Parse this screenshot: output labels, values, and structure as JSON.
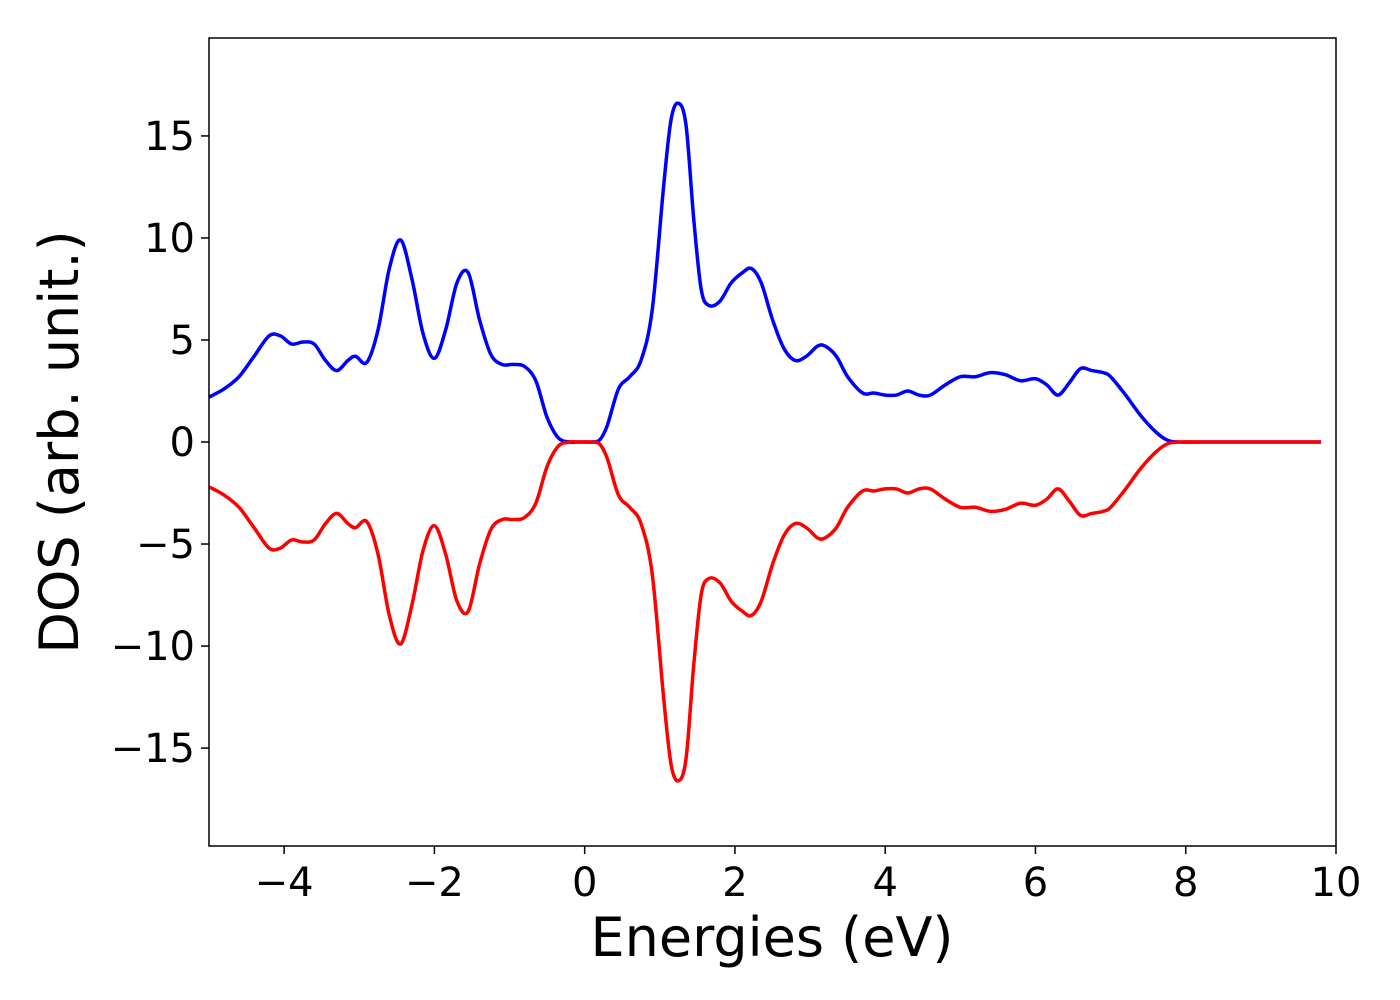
{
  "chart_data": {
    "type": "line",
    "title": "",
    "xlabel": "Energies (eV)",
    "ylabel": "DOS (arb. unit.)",
    "xlim": [
      -5,
      10
    ],
    "ylim": [
      -19.8,
      19.8
    ],
    "grid": false,
    "legend": "none",
    "x_ticks": [
      -4,
      -2,
      0,
      2,
      4,
      6,
      8,
      10
    ],
    "x_tick_labels": [
      "−4",
      "−2",
      "0",
      "2",
      "4",
      "6",
      "8",
      "10"
    ],
    "y_ticks": [
      15,
      10,
      5,
      0,
      -5,
      -10,
      -15
    ],
    "y_tick_labels": [
      "15",
      "10",
      "5",
      "0",
      "−5",
      "−10",
      "−15"
    ],
    "series": [
      {
        "color": "#0000ff",
        "x": [
          -5.0,
          -4.8,
          -4.6,
          -4.4,
          -4.2,
          -4.05,
          -3.9,
          -3.75,
          -3.6,
          -3.45,
          -3.3,
          -3.15,
          -3.05,
          -2.9,
          -2.75,
          -2.6,
          -2.45,
          -2.3,
          -2.15,
          -2.0,
          -1.85,
          -1.7,
          -1.55,
          -1.4,
          -1.25,
          -1.1,
          -0.95,
          -0.8,
          -0.65,
          -0.5,
          -0.35,
          -0.2,
          -0.1,
          0.0,
          0.1,
          0.2,
          0.3,
          0.45,
          0.6,
          0.75,
          0.9,
          1.05,
          1.15,
          1.25,
          1.35,
          1.45,
          1.55,
          1.65,
          1.8,
          1.95,
          2.1,
          2.22,
          2.35,
          2.5,
          2.65,
          2.8,
          2.95,
          3.1,
          3.2,
          3.35,
          3.5,
          3.7,
          3.85,
          4.0,
          4.15,
          4.3,
          4.45,
          4.6,
          4.8,
          5.0,
          5.2,
          5.4,
          5.6,
          5.8,
          6.0,
          6.15,
          6.3,
          6.45,
          6.6,
          6.75,
          6.9,
          7.0,
          7.2,
          7.4,
          7.6,
          7.75,
          7.9,
          8.2,
          8.6,
          9.0,
          9.4,
          9.8
        ],
        "values": [
          2.2,
          2.6,
          3.2,
          4.2,
          5.2,
          5.2,
          4.8,
          4.9,
          4.8,
          4.0,
          3.5,
          4.0,
          4.2,
          3.9,
          5.5,
          8.5,
          9.9,
          8.0,
          5.3,
          4.1,
          5.5,
          7.8,
          8.3,
          6.0,
          4.3,
          3.8,
          3.8,
          3.7,
          3.0,
          1.2,
          0.2,
          0.0,
          0.0,
          0.0,
          0.0,
          0.1,
          0.8,
          2.6,
          3.2,
          4.0,
          6.5,
          12.5,
          15.8,
          16.6,
          15.5,
          11.0,
          7.5,
          6.7,
          6.9,
          7.8,
          8.3,
          8.5,
          7.8,
          6.0,
          4.6,
          4.0,
          4.2,
          4.7,
          4.7,
          4.2,
          3.2,
          2.4,
          2.4,
          2.3,
          2.3,
          2.5,
          2.3,
          2.3,
          2.8,
          3.2,
          3.2,
          3.4,
          3.3,
          3.0,
          3.1,
          2.8,
          2.3,
          2.9,
          3.6,
          3.5,
          3.4,
          3.2,
          2.3,
          1.3,
          0.5,
          0.1,
          0.0,
          0.0,
          0.0,
          0.0,
          0.0,
          0.0
        ]
      },
      {
        "color": "#ff0000",
        "x": [
          -5.0,
          -4.8,
          -4.6,
          -4.4,
          -4.2,
          -4.05,
          -3.9,
          -3.75,
          -3.6,
          -3.45,
          -3.3,
          -3.15,
          -3.05,
          -2.9,
          -2.75,
          -2.6,
          -2.45,
          -2.3,
          -2.15,
          -2.0,
          -1.85,
          -1.7,
          -1.55,
          -1.4,
          -1.25,
          -1.1,
          -0.95,
          -0.8,
          -0.65,
          -0.5,
          -0.35,
          -0.2,
          -0.1,
          0.0,
          0.1,
          0.2,
          0.3,
          0.45,
          0.6,
          0.75,
          0.9,
          1.05,
          1.15,
          1.25,
          1.35,
          1.45,
          1.55,
          1.65,
          1.8,
          1.95,
          2.1,
          2.22,
          2.35,
          2.5,
          2.65,
          2.8,
          2.95,
          3.1,
          3.2,
          3.35,
          3.5,
          3.7,
          3.85,
          4.0,
          4.15,
          4.3,
          4.45,
          4.6,
          4.8,
          5.0,
          5.2,
          5.4,
          5.6,
          5.8,
          6.0,
          6.15,
          6.3,
          6.45,
          6.6,
          6.75,
          6.9,
          7.0,
          7.2,
          7.4,
          7.6,
          7.75,
          7.9,
          8.2,
          8.6,
          9.0,
          9.4,
          9.8
        ],
        "values": [
          -2.2,
          -2.6,
          -3.2,
          -4.2,
          -5.2,
          -5.2,
          -4.8,
          -4.9,
          -4.8,
          -4.0,
          -3.5,
          -4.0,
          -4.2,
          -3.9,
          -5.5,
          -8.5,
          -9.9,
          -8.0,
          -5.3,
          -4.1,
          -5.5,
          -7.8,
          -8.3,
          -6.0,
          -4.3,
          -3.8,
          -3.8,
          -3.7,
          -3.0,
          -1.2,
          -0.2,
          0.0,
          0.0,
          0.0,
          0.0,
          -0.1,
          -0.8,
          -2.6,
          -3.2,
          -4.0,
          -6.5,
          -12.5,
          -15.8,
          -16.6,
          -15.5,
          -11.0,
          -7.5,
          -6.7,
          -6.9,
          -7.8,
          -8.3,
          -8.5,
          -7.8,
          -6.0,
          -4.6,
          -4.0,
          -4.2,
          -4.7,
          -4.7,
          -4.2,
          -3.2,
          -2.4,
          -2.4,
          -2.3,
          -2.3,
          -2.5,
          -2.3,
          -2.3,
          -2.8,
          -3.2,
          -3.2,
          -3.4,
          -3.3,
          -3.0,
          -3.1,
          -2.8,
          -2.3,
          -2.9,
          -3.6,
          -3.5,
          -3.4,
          -3.2,
          -2.3,
          -1.3,
          -0.5,
          -0.1,
          0.0,
          0.0,
          0.0,
          0.0,
          0.0,
          0.0
        ]
      }
    ]
  }
}
